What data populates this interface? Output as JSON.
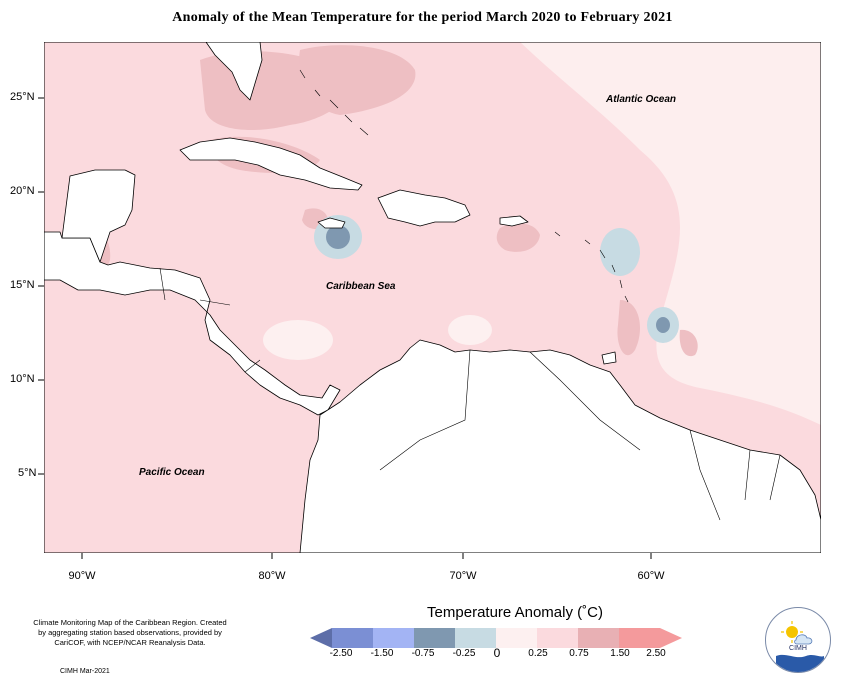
{
  "title": "Anomaly of the Mean Temperature for the period March 2020 to February 2021",
  "map": {
    "lat_labels": [
      "25°N",
      "20°N",
      "15°N",
      "10°N",
      "5°N"
    ],
    "lon_labels": [
      "90°W",
      "80°W",
      "70°W",
      "60°W"
    ],
    "ocean_labels": {
      "atlantic": "Atlantic Ocean",
      "caribbean": "Caribbean Sea",
      "pacific": "Pacific Ocean"
    }
  },
  "footer": {
    "note": "Climate Monitoring Map of the Caribbean Region. Created by aggregating station based observations, provided by CariCOF, with NCEP/NCAR Reanalysis Data.",
    "credit": "CIMH Mar-2021",
    "logo_text": "CIMH"
  },
  "legend": {
    "title": "Temperature Anomaly (˚C)",
    "labels": [
      "-2.50",
      "-1.50",
      "-0.75",
      "-0.25",
      "0",
      "0.25",
      "0.75",
      "1.50",
      "2.50"
    ],
    "colors": [
      "#5d6ea8",
      "#7b8fd4",
      "#a3b4f4",
      "#7f98b0",
      "#c7dbe3",
      "#fdf0f0",
      "#fbdade",
      "#e8b0b4",
      "#f49a9c"
    ]
  }
}
